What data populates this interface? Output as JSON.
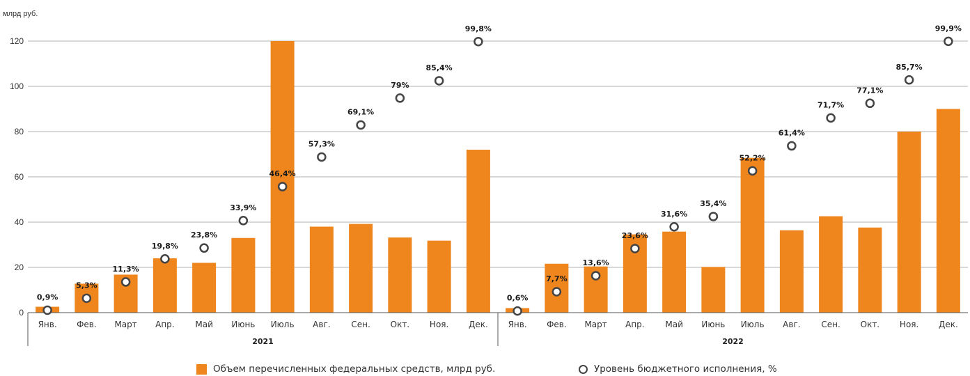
{
  "chart_data": {
    "type": "bar",
    "unit_label": "млрд руб.",
    "ylim": [
      0,
      120
    ],
    "yticks": [
      0,
      20,
      40,
      60,
      80,
      100,
      120
    ],
    "grid": true,
    "colors": {
      "bar": "#EE851D",
      "marker_stroke": "#444444",
      "grid": "#999999"
    },
    "groups": [
      {
        "label": "2021",
        "categories": [
          "Янв.",
          "Фев.",
          "Март",
          "Апр.",
          "Май",
          "Июнь",
          "Июль",
          "Авг.",
          "Сен.",
          "Окт.",
          "Ноя.",
          "Дек."
        ],
        "bars": [
          2.6,
          12.8,
          16.8,
          24,
          22,
          33,
          120,
          38,
          39.2,
          33.2,
          31.8,
          72
        ],
        "execution_pct": [
          0.9,
          5.3,
          11.3,
          19.8,
          23.8,
          33.9,
          46.4,
          57.3,
          69.1,
          79,
          85.4,
          99.8
        ],
        "pct_labels": [
          "0,9%",
          "5,3%",
          "11,3%",
          "19,8%",
          "23,8%",
          "33,9%",
          "46,4%",
          "57,3%",
          "69,1%",
          "79%",
          "85,4%",
          "99,8%"
        ]
      },
      {
        "label": "2022",
        "categories": [
          "Янв.",
          "Фев.",
          "Март",
          "Апр.",
          "Май",
          "Июнь",
          "Июль",
          "Авг.",
          "Сен.",
          "Окт.",
          "Ноя.",
          "Дек."
        ],
        "bars": [
          2,
          21.6,
          20.4,
          34.6,
          35.8,
          20.2,
          68.4,
          36.4,
          42.6,
          37.6,
          80,
          90
        ],
        "execution_pct": [
          0.6,
          7.7,
          13.6,
          23.6,
          31.6,
          35.4,
          52.2,
          61.4,
          71.7,
          77.1,
          85.7,
          99.9
        ],
        "pct_labels": [
          "0,6%",
          "7,7%",
          "13,6%",
          "23,6%",
          "31,6%",
          "35,4%",
          "52,2%",
          "61,4%",
          "71,7%",
          "77,1%",
          "85,7%",
          "99,9%"
        ]
      }
    ],
    "legend": {
      "bars_label": "Объем перечисленных федеральных средств, млрд руб.",
      "markers_label": "Уровень бюджетного исполнения, %"
    }
  }
}
